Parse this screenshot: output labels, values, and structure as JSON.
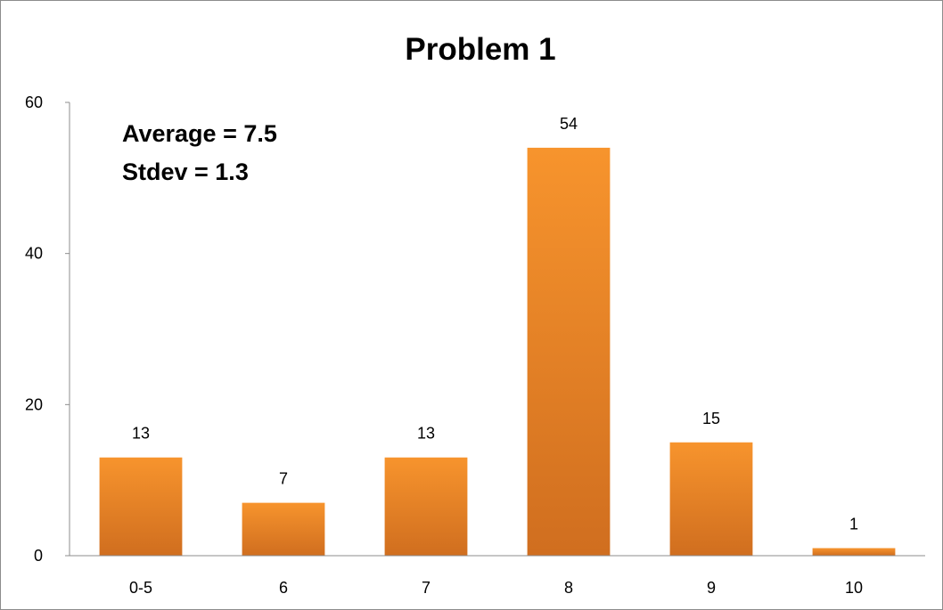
{
  "chart_data": {
    "type": "bar",
    "title": "Problem 1",
    "annotations": [
      "Average = 7.5",
      "Stdev = 1.3"
    ],
    "categories": [
      "0-5",
      "6",
      "7",
      "8",
      "9",
      "10"
    ],
    "values": [
      13,
      7,
      13,
      54,
      15,
      1
    ],
    "data_labels": [
      "13",
      "7",
      "13",
      "54",
      "15",
      "1"
    ],
    "ylim": [
      0,
      60
    ],
    "y_ticks": [
      0,
      20,
      40,
      60
    ],
    "y_tick_labels": [
      "0",
      "20",
      "40",
      "60"
    ],
    "xlabel": "",
    "ylabel": "",
    "grid": false,
    "legend": "none",
    "bar_color_top": "#F7942D",
    "bar_color_bottom": "#D06E1F"
  }
}
